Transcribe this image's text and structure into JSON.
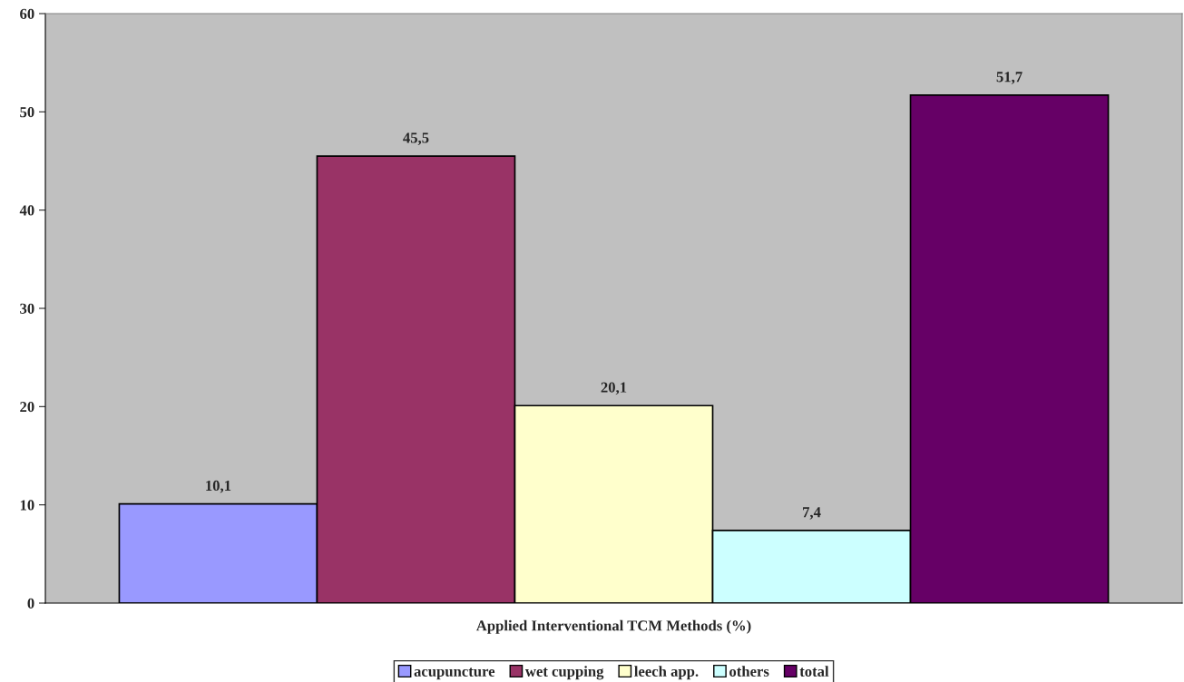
{
  "chart_data": {
    "type": "bar",
    "xlabel": "Applied Interventional TCM Methods (%)",
    "categories": [
      null
    ],
    "series": [
      {
        "name": "acupuncture",
        "color": "#9999ff",
        "values": [
          10.1
        ],
        "value_labels": [
          "10,1"
        ]
      },
      {
        "name": "wet cupping",
        "color": "#993366",
        "values": [
          45.5
        ],
        "value_labels": [
          "45,5"
        ]
      },
      {
        "name": "leech app.",
        "color": "#ffffcc",
        "values": [
          20.1
        ],
        "value_labels": [
          "20,1"
        ]
      },
      {
        "name": "others",
        "color": "#ccffff",
        "values": [
          7.4
        ],
        "value_labels": [
          "7,4"
        ]
      },
      {
        "name": "total",
        "color": "#660066",
        "values": [
          51.7
        ],
        "value_labels": [
          "51,7"
        ]
      }
    ],
    "ylim": [
      0,
      60
    ],
    "yticks": [
      0,
      10,
      20,
      30,
      40,
      50,
      60
    ],
    "grid": false,
    "legend": "bottom"
  }
}
